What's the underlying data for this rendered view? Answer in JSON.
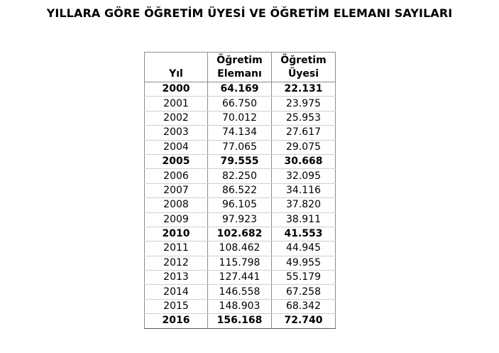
{
  "title": "YILLARA GÖRE ÖĞRETİM ÜYESİ VE ÖĞRETİM ELEMANI SAYILARI",
  "table": {
    "headers": {
      "year": "Yıl",
      "elemani_line1": "Öğretim",
      "elemani_line2": "Elemanı",
      "uyesi_line1": "Öğretim",
      "uyesi_line2": "Üyesi"
    },
    "rows": [
      {
        "year": "2000",
        "elemani": "64.169",
        "uyesi": "22.131",
        "bold": true
      },
      {
        "year": "2001",
        "elemani": "66.750",
        "uyesi": "23.975",
        "bold": false
      },
      {
        "year": "2002",
        "elemani": "70.012",
        "uyesi": "25.953",
        "bold": false
      },
      {
        "year": "2003",
        "elemani": "74.134",
        "uyesi": "27.617",
        "bold": false
      },
      {
        "year": "2004",
        "elemani": "77.065",
        "uyesi": "29.075",
        "bold": false
      },
      {
        "year": "2005",
        "elemani": "79.555",
        "uyesi": "30.668",
        "bold": true
      },
      {
        "year": "2006",
        "elemani": "82.250",
        "uyesi": "32.095",
        "bold": false
      },
      {
        "year": "2007",
        "elemani": "86.522",
        "uyesi": "34.116",
        "bold": false
      },
      {
        "year": "2008",
        "elemani": "96.105",
        "uyesi": "37.820",
        "bold": false
      },
      {
        "year": "2009",
        "elemani": "97.923",
        "uyesi": "38.911",
        "bold": false
      },
      {
        "year": "2010",
        "elemani": "102.682",
        "uyesi": "41.553",
        "bold": true
      },
      {
        "year": "2011",
        "elemani": "108.462",
        "uyesi": "44.945",
        "bold": false
      },
      {
        "year": "2012",
        "elemani": "115.798",
        "uyesi": "49.955",
        "bold": false
      },
      {
        "year": "2013",
        "elemani": "127.441",
        "uyesi": "55.179",
        "bold": false
      },
      {
        "year": "2014",
        "elemani": "146.558",
        "uyesi": "67.258",
        "bold": false
      },
      {
        "year": "2015",
        "elemani": "148.903",
        "uyesi": "68.342",
        "bold": false
      },
      {
        "year": "2016",
        "elemani": "156.168",
        "uyesi": "72.740",
        "bold": true
      }
    ]
  }
}
